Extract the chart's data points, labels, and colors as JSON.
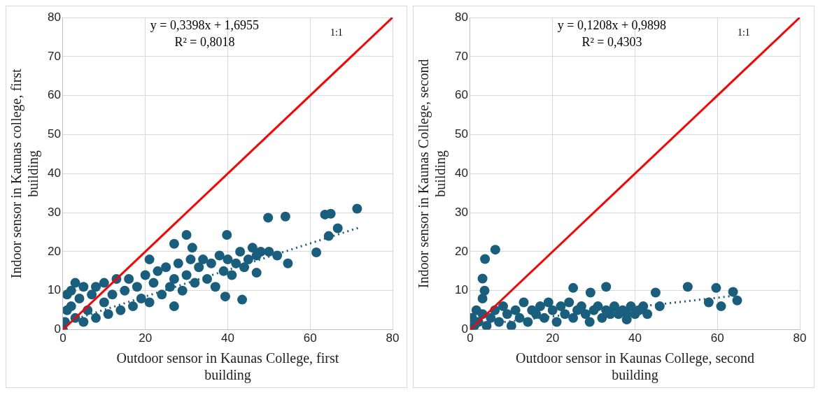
{
  "chart_data": [
    {
      "type": "scatter",
      "xlabel": "Outdoor sensor in Kaunas College, first building",
      "ylabel": "Indoor sensor in Kaunas college, first building",
      "xlim": [
        0,
        80
      ],
      "xticks": [
        0,
        20,
        40,
        60,
        80
      ],
      "ylim": [
        0,
        80
      ],
      "yticks": [
        0,
        10,
        20,
        30,
        40,
        50,
        60,
        70,
        80
      ],
      "grid": true,
      "legend": false,
      "annotations": [
        "y = 0,3398x + 1,6955",
        "R² = 0,8018",
        "1:1"
      ],
      "series": [
        {
          "type": "scatter",
          "color": "#1a5e7e",
          "marker": "circle",
          "x": [
            0,
            0.5,
            1,
            1,
            2,
            3,
            2,
            3,
            4,
            5,
            5,
            6,
            7,
            8,
            8,
            10,
            10,
            11,
            12,
            13,
            14,
            15,
            16,
            17,
            18,
            19,
            20,
            21,
            21,
            22,
            23,
            24,
            25,
            26,
            27,
            27,
            28,
            29,
            30,
            31,
            32,
            33,
            34,
            35,
            36,
            37,
            38,
            39,
            40,
            41,
            42,
            43,
            44,
            45,
            46,
            47,
            48,
            50,
            52,
            47,
            49.8,
            54,
            71.4,
            63.6,
            65,
            66.7,
            64.5,
            61.5,
            39.8,
            30,
            27,
            31.4,
            39.4,
            43.5,
            54.6
          ],
          "values": [
            0,
            2,
            5,
            9,
            10,
            12,
            6,
            3,
            8,
            11,
            2,
            5,
            9,
            11,
            3,
            7,
            12,
            4,
            9,
            13,
            5,
            10,
            13,
            6,
            11,
            8,
            14,
            18,
            7,
            12,
            15,
            9,
            16,
            11,
            13,
            6,
            17,
            10,
            14,
            18,
            12,
            16,
            18,
            13,
            17,
            11,
            19,
            15,
            18,
            14,
            17,
            20,
            16,
            18,
            21,
            19,
            20,
            20,
            19,
            14.6,
            28.7,
            29,
            31,
            29.5,
            29.7,
            26,
            24,
            19.8,
            24.3,
            24.3,
            22,
            21,
            8.5,
            7.7,
            17
          ]
        },
        {
          "type": "line",
          "color": "#1a5e7e",
          "line_style": "dotted",
          "x": [
            0,
            72
          ],
          "values": [
            1.7,
            26.2
          ]
        },
        {
          "type": "line",
          "color": "#ff0000",
          "line_style": "solid",
          "x": [
            0,
            80
          ],
          "values": [
            0,
            80
          ]
        }
      ]
    },
    {
      "type": "scatter",
      "xlabel": "Outdoor sensor in Kaunas College, second building",
      "ylabel": "Indoor sensor in Kaunas College, second building",
      "xlim": [
        0,
        80
      ],
      "xticks": [
        0,
        20,
        40,
        60,
        80
      ],
      "ylim": [
        0,
        80
      ],
      "yticks": [
        0,
        10,
        20,
        30,
        40,
        50,
        60,
        70,
        80
      ],
      "grid": true,
      "legend": false,
      "annotations": [
        "y = 0,1208x + 0,9898",
        "R² = 0,4303",
        "1:1"
      ],
      "series": [
        {
          "type": "scatter",
          "color": "#1a5e7e",
          "marker": "circle",
          "x": [
            0,
            0.5,
            1,
            1.5,
            2,
            3,
            3,
            3.5,
            4,
            5,
            6,
            7,
            8,
            9,
            10,
            11,
            12,
            13,
            14,
            15,
            16,
            17,
            18,
            19,
            20,
            21,
            22,
            23,
            24,
            25,
            26,
            27,
            28,
            29,
            30,
            31,
            32,
            33,
            34,
            35,
            36,
            37,
            38,
            39,
            40,
            41,
            42,
            43,
            6.1,
            3.6,
            3,
            33,
            52.8,
            59.7,
            63.8,
            64.8,
            60.9,
            57.9,
            45,
            46,
            38,
            29.2,
            25
          ],
          "values": [
            0,
            3,
            1,
            5,
            2,
            4,
            8,
            10,
            1,
            3,
            5,
            2,
            6,
            4,
            1,
            5,
            3,
            7,
            2,
            5,
            4,
            6,
            3,
            7,
            5,
            2,
            6,
            4,
            7,
            3,
            5,
            6,
            4,
            2,
            5,
            6,
            3,
            5,
            4,
            6,
            4,
            5,
            4,
            6,
            4,
            5,
            6,
            4,
            20.5,
            18.1,
            13.1,
            11,
            11,
            10.7,
            9.7,
            7.5,
            6,
            7,
            9.5,
            6,
            2.6,
            9.5,
            10.7
          ]
        },
        {
          "type": "line",
          "color": "#1a5e7e",
          "line_style": "dotted",
          "x": [
            0,
            65
          ],
          "values": [
            1.0,
            8.8
          ]
        },
        {
          "type": "line",
          "color": "#ff0000",
          "line_style": "solid",
          "x": [
            0,
            80
          ],
          "values": [
            0,
            80
          ]
        }
      ]
    }
  ]
}
